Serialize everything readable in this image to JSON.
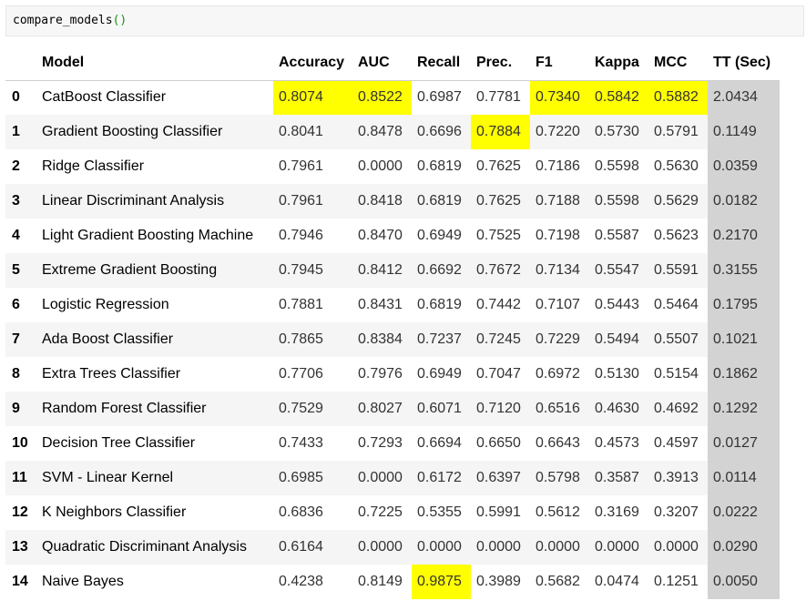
{
  "cell": {
    "function_name": "compare_models",
    "open_paren": "(",
    "close_paren": ")"
  },
  "colors": {
    "highlight_best": "#ffff00",
    "time_column_bg": "#d3d3d3",
    "stripe_bg": "#f5f5f5",
    "code_cell_bg": "#f7f7f7",
    "paren_green": "#1a8f1a"
  },
  "table": {
    "columns": [
      "",
      "Model",
      "Accuracy",
      "AUC",
      "Recall",
      "Prec.",
      "F1",
      "Kappa",
      "MCC",
      "TT (Sec)"
    ],
    "rows": [
      {
        "index": "0",
        "model": "CatBoost Classifier",
        "accuracy": "0.8074",
        "auc": "0.8522",
        "recall": "0.6987",
        "prec": "0.7781",
        "f1": "0.7340",
        "kappa": "0.5842",
        "mcc": "0.5882",
        "tt": "2.0434",
        "highlight": [
          "accuracy",
          "auc",
          "f1",
          "kappa",
          "mcc"
        ]
      },
      {
        "index": "1",
        "model": "Gradient Boosting Classifier",
        "accuracy": "0.8041",
        "auc": "0.8478",
        "recall": "0.6696",
        "prec": "0.7884",
        "f1": "0.7220",
        "kappa": "0.5730",
        "mcc": "0.5791",
        "tt": "0.1149",
        "highlight": [
          "prec"
        ]
      },
      {
        "index": "2",
        "model": "Ridge Classifier",
        "accuracy": "0.7961",
        "auc": "0.0000",
        "recall": "0.6819",
        "prec": "0.7625",
        "f1": "0.7186",
        "kappa": "0.5598",
        "mcc": "0.5630",
        "tt": "0.0359",
        "highlight": []
      },
      {
        "index": "3",
        "model": "Linear Discriminant Analysis",
        "accuracy": "0.7961",
        "auc": "0.8418",
        "recall": "0.6819",
        "prec": "0.7625",
        "f1": "0.7188",
        "kappa": "0.5598",
        "mcc": "0.5629",
        "tt": "0.0182",
        "highlight": []
      },
      {
        "index": "4",
        "model": "Light Gradient Boosting Machine",
        "accuracy": "0.7946",
        "auc": "0.8470",
        "recall": "0.6949",
        "prec": "0.7525",
        "f1": "0.7198",
        "kappa": "0.5587",
        "mcc": "0.5623",
        "tt": "0.2170",
        "highlight": []
      },
      {
        "index": "5",
        "model": "Extreme Gradient Boosting",
        "accuracy": "0.7945",
        "auc": "0.8412",
        "recall": "0.6692",
        "prec": "0.7672",
        "f1": "0.7134",
        "kappa": "0.5547",
        "mcc": "0.5591",
        "tt": "0.3155",
        "highlight": []
      },
      {
        "index": "6",
        "model": "Logistic Regression",
        "accuracy": "0.7881",
        "auc": "0.8431",
        "recall": "0.6819",
        "prec": "0.7442",
        "f1": "0.7107",
        "kappa": "0.5443",
        "mcc": "0.5464",
        "tt": "0.1795",
        "highlight": []
      },
      {
        "index": "7",
        "model": "Ada Boost Classifier",
        "accuracy": "0.7865",
        "auc": "0.8384",
        "recall": "0.7237",
        "prec": "0.7245",
        "f1": "0.7229",
        "kappa": "0.5494",
        "mcc": "0.5507",
        "tt": "0.1021",
        "highlight": []
      },
      {
        "index": "8",
        "model": "Extra Trees Classifier",
        "accuracy": "0.7706",
        "auc": "0.7976",
        "recall": "0.6949",
        "prec": "0.7047",
        "f1": "0.6972",
        "kappa": "0.5130",
        "mcc": "0.5154",
        "tt": "0.1862",
        "highlight": []
      },
      {
        "index": "9",
        "model": "Random Forest Classifier",
        "accuracy": "0.7529",
        "auc": "0.8027",
        "recall": "0.6071",
        "prec": "0.7120",
        "f1": "0.6516",
        "kappa": "0.4630",
        "mcc": "0.4692",
        "tt": "0.1292",
        "highlight": []
      },
      {
        "index": "10",
        "model": "Decision Tree Classifier",
        "accuracy": "0.7433",
        "auc": "0.7293",
        "recall": "0.6694",
        "prec": "0.6650",
        "f1": "0.6643",
        "kappa": "0.4573",
        "mcc": "0.4597",
        "tt": "0.0127",
        "highlight": []
      },
      {
        "index": "11",
        "model": "SVM - Linear Kernel",
        "accuracy": "0.6985",
        "auc": "0.0000",
        "recall": "0.6172",
        "prec": "0.6397",
        "f1": "0.5798",
        "kappa": "0.3587",
        "mcc": "0.3913",
        "tt": "0.0114",
        "highlight": []
      },
      {
        "index": "12",
        "model": "K Neighbors Classifier",
        "accuracy": "0.6836",
        "auc": "0.7225",
        "recall": "0.5355",
        "prec": "0.5991",
        "f1": "0.5612",
        "kappa": "0.3169",
        "mcc": "0.3207",
        "tt": "0.0222",
        "highlight": []
      },
      {
        "index": "13",
        "model": "Quadratic Discriminant Analysis",
        "accuracy": "0.6164",
        "auc": "0.0000",
        "recall": "0.0000",
        "prec": "0.0000",
        "f1": "0.0000",
        "kappa": "0.0000",
        "mcc": "0.0000",
        "tt": "0.0290",
        "highlight": []
      },
      {
        "index": "14",
        "model": "Naive Bayes",
        "accuracy": "0.4238",
        "auc": "0.8149",
        "recall": "0.9875",
        "prec": "0.3989",
        "f1": "0.5682",
        "kappa": "0.0474",
        "mcc": "0.1251",
        "tt": "0.0050",
        "highlight": [
          "recall"
        ]
      }
    ]
  }
}
